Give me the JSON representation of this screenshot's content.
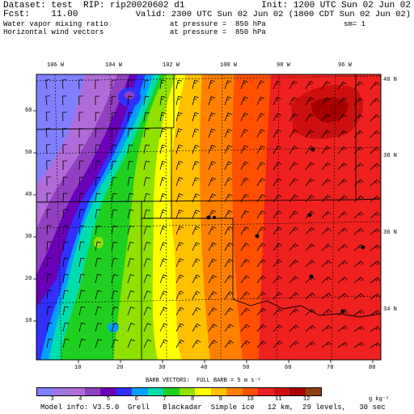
{
  "header": {
    "line1_left": "Dataset: test  RIP: rip20020602 d1",
    "line1_right": "Init: 1200 UTC Sun 02 Jun 02",
    "line2_left": "Fcst:    11.00",
    "line2_right": "Valid: 2300 UTC Sun 02 Jun 02 (1800 CDT Sun 02 Jun 02)",
    "field1_name": "Water vapor mixing ratio",
    "field1_level": "at pressure =  850 hPa",
    "field1_extra": "sm= 1",
    "field2_name": "Horizontal wind vectors",
    "field2_level": "at pressure =  850 hPa"
  },
  "map": {
    "lon_labels": [
      "106 W",
      "104 W",
      "102 W",
      "100 W",
      "98 W",
      "96 W"
    ],
    "lat_labels": [
      "40 N",
      "38 N",
      "36 N",
      "34 N"
    ],
    "y_ticks": [
      "60",
      "50",
      "40",
      "30",
      "20",
      "10"
    ],
    "x_ticks": [
      "10",
      "20",
      "30",
      "40",
      "50",
      "60",
      "70",
      "80"
    ]
  },
  "barb_note": "BARB VECTORS:  FULL BARB = 5 m s⁻¹",
  "colorbar": {
    "labels": [
      "3",
      "4",
      "5",
      "6",
      "7",
      "8",
      "9",
      "10",
      "11",
      "12"
    ],
    "units": "g kg⁻¹",
    "colors": [
      "#8080ff",
      "#a078e0",
      "#b06cd8",
      "#9040c0",
      "#6a00b8",
      "#3030ff",
      "#00a0ff",
      "#00ddaa",
      "#20d020",
      "#90e000",
      "#ffff00",
      "#ffc000",
      "#ff8000",
      "#ff5000",
      "#ee2020",
      "#cc1010",
      "#a80000",
      "#8a4010"
    ]
  },
  "model_info": "Model info: V3.5.0  Grell   Blackadar  Simple ice   12 km,  29 levels,   30 sec"
}
